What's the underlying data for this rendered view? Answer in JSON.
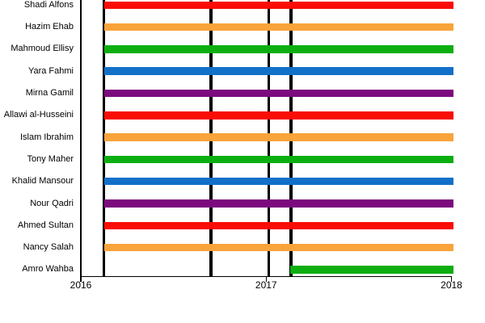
{
  "chart_data": {
    "type": "bar",
    "subtype": "gantt-timeline",
    "orientation": "horizontal",
    "legend": "none",
    "grid": false,
    "x_axis": {
      "tick_labels": [
        "2016",
        "2017",
        "2018"
      ],
      "tick_values": [
        2016,
        2017,
        2018
      ],
      "range": [
        2016,
        2018.05
      ]
    },
    "event_lines": [
      2016.125,
      2016.703,
      2017.014,
      2017.134
    ],
    "colors": {
      "red": "#f90d06",
      "orange": "#f9a33b",
      "green": "#0cae10",
      "blue": "#1270c8",
      "purple": "#7c0a7e",
      "axis": "#000000",
      "event_line": "#000000",
      "text": "#000000"
    },
    "rows": [
      {
        "label": "Shadi Alfons",
        "color": "red",
        "start": 2016.125,
        "end": 2018.012
      },
      {
        "label": "Hazim Ehab",
        "color": "orange",
        "start": 2016.125,
        "end": 2018.012
      },
      {
        "label": "Mahmoud Ellisy",
        "color": "green",
        "start": 2016.125,
        "end": 2018.012
      },
      {
        "label": "Yara Fahmi",
        "color": "blue",
        "start": 2016.125,
        "end": 2018.012
      },
      {
        "label": "Mirna Gamil",
        "color": "purple",
        "start": 2016.125,
        "end": 2018.012
      },
      {
        "label": "Allawi al-Husseini",
        "color": "red",
        "start": 2016.125,
        "end": 2018.012
      },
      {
        "label": "Islam Ibrahim",
        "color": "orange",
        "start": 2016.125,
        "end": 2018.012
      },
      {
        "label": "Tony Maher",
        "color": "green",
        "start": 2016.125,
        "end": 2018.012
      },
      {
        "label": "Khalid Mansour",
        "color": "blue",
        "start": 2016.125,
        "end": 2018.012
      },
      {
        "label": "Nour Qadri",
        "color": "purple",
        "start": 2016.125,
        "end": 2018.012
      },
      {
        "label": "Ahmed Sultan",
        "color": "red",
        "start": 2016.125,
        "end": 2018.012
      },
      {
        "label": "Nancy Salah",
        "color": "orange",
        "start": 2016.125,
        "end": 2018.012
      },
      {
        "label": "Amro Wahba",
        "color": "green",
        "start": 2017.13,
        "end": 2018.012
      }
    ]
  }
}
